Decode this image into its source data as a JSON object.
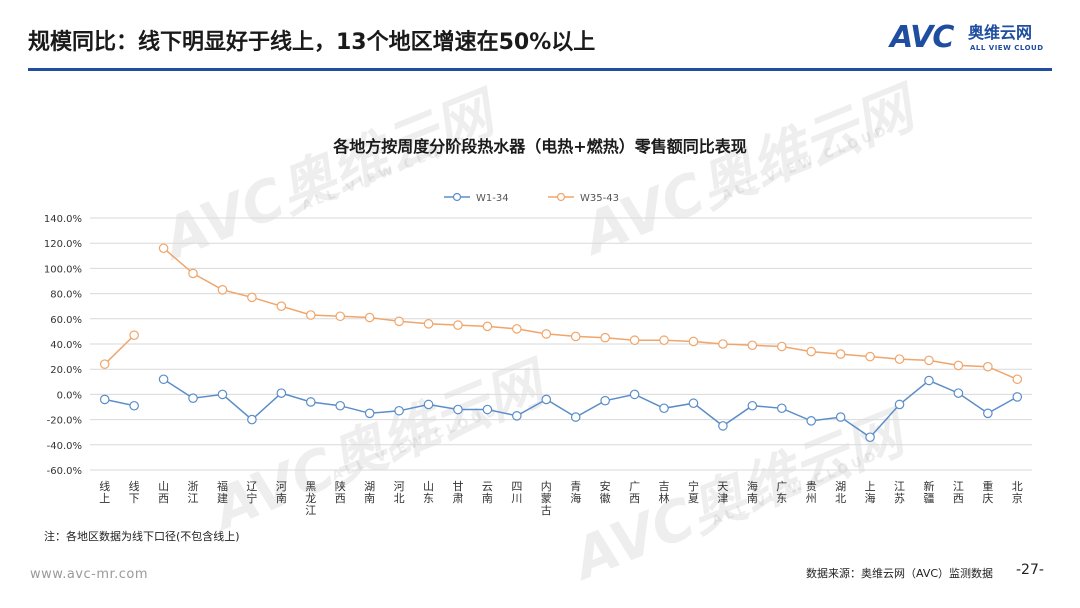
{
  "header": {
    "title": "规模同比：线下明显好于线上，13个地区增速在50%以上",
    "logo_text": "AVC",
    "logo_cn": "奥维云网",
    "logo_en": "ALL VIEW CLOUD"
  },
  "watermark": {
    "text": "AVC奥维云网",
    "subtext": "ALL VIEW CLOUD"
  },
  "colors": {
    "accent": "#1f4ea1",
    "series_w1_34": "#5b8ec9",
    "series_w35_43": "#f0a56a"
  },
  "chart_data": {
    "type": "line",
    "title": "各地方按周度分阶段热水器（电热+燃热）零售额同比表现",
    "categories": [
      "线上",
      "线下",
      "山西",
      "浙江",
      "福建",
      "辽宁",
      "河南",
      "黑龙江",
      "陕西",
      "湖南",
      "河北",
      "山东",
      "甘肃",
      "云南",
      "四川",
      "内蒙古",
      "青海",
      "安徽",
      "广西",
      "吉林",
      "宁夏",
      "天津",
      "海南",
      "广东",
      "贵州",
      "湖北",
      "上海",
      "江苏",
      "新疆",
      "江西",
      "重庆",
      "北京"
    ],
    "y_ticks": [
      "140.0%",
      "120.0%",
      "100.0%",
      "80.0%",
      "60.0%",
      "40.0%",
      "20.0%",
      "0.0%",
      "-20.0%",
      "-40.0%",
      "-60.0%"
    ],
    "ylim": [
      -60,
      140
    ],
    "legend_position": "top",
    "grid": true,
    "series": [
      {
        "name": "W1-34",
        "color": "#5b8ec9",
        "values": [
          -4,
          -9,
          12,
          -3,
          0,
          -20,
          1,
          -6,
          -9,
          -15,
          -13,
          -8,
          -12,
          -12,
          -17,
          -4,
          -18,
          -5,
          0,
          -11,
          -7,
          -25,
          -9,
          -11,
          -21,
          -18,
          -34,
          -8,
          11,
          1,
          -15,
          -2
        ]
      },
      {
        "name": "W35-43",
        "color": "#f0a56a",
        "values": [
          24,
          47,
          116,
          96,
          83,
          77,
          70,
          63,
          62,
          61,
          58,
          56,
          55,
          54,
          52,
          48,
          46,
          45,
          43,
          43,
          42,
          40,
          39,
          38,
          34,
          32,
          30,
          28,
          27,
          23,
          22,
          12
        ]
      }
    ]
  },
  "footer": {
    "note": "注：各地区数据为线下口径(不包含线上)",
    "website": "www.avc-mr.com",
    "source": "数据来源：奥维云网（AVC）监测数据",
    "page_number": "-27-"
  }
}
